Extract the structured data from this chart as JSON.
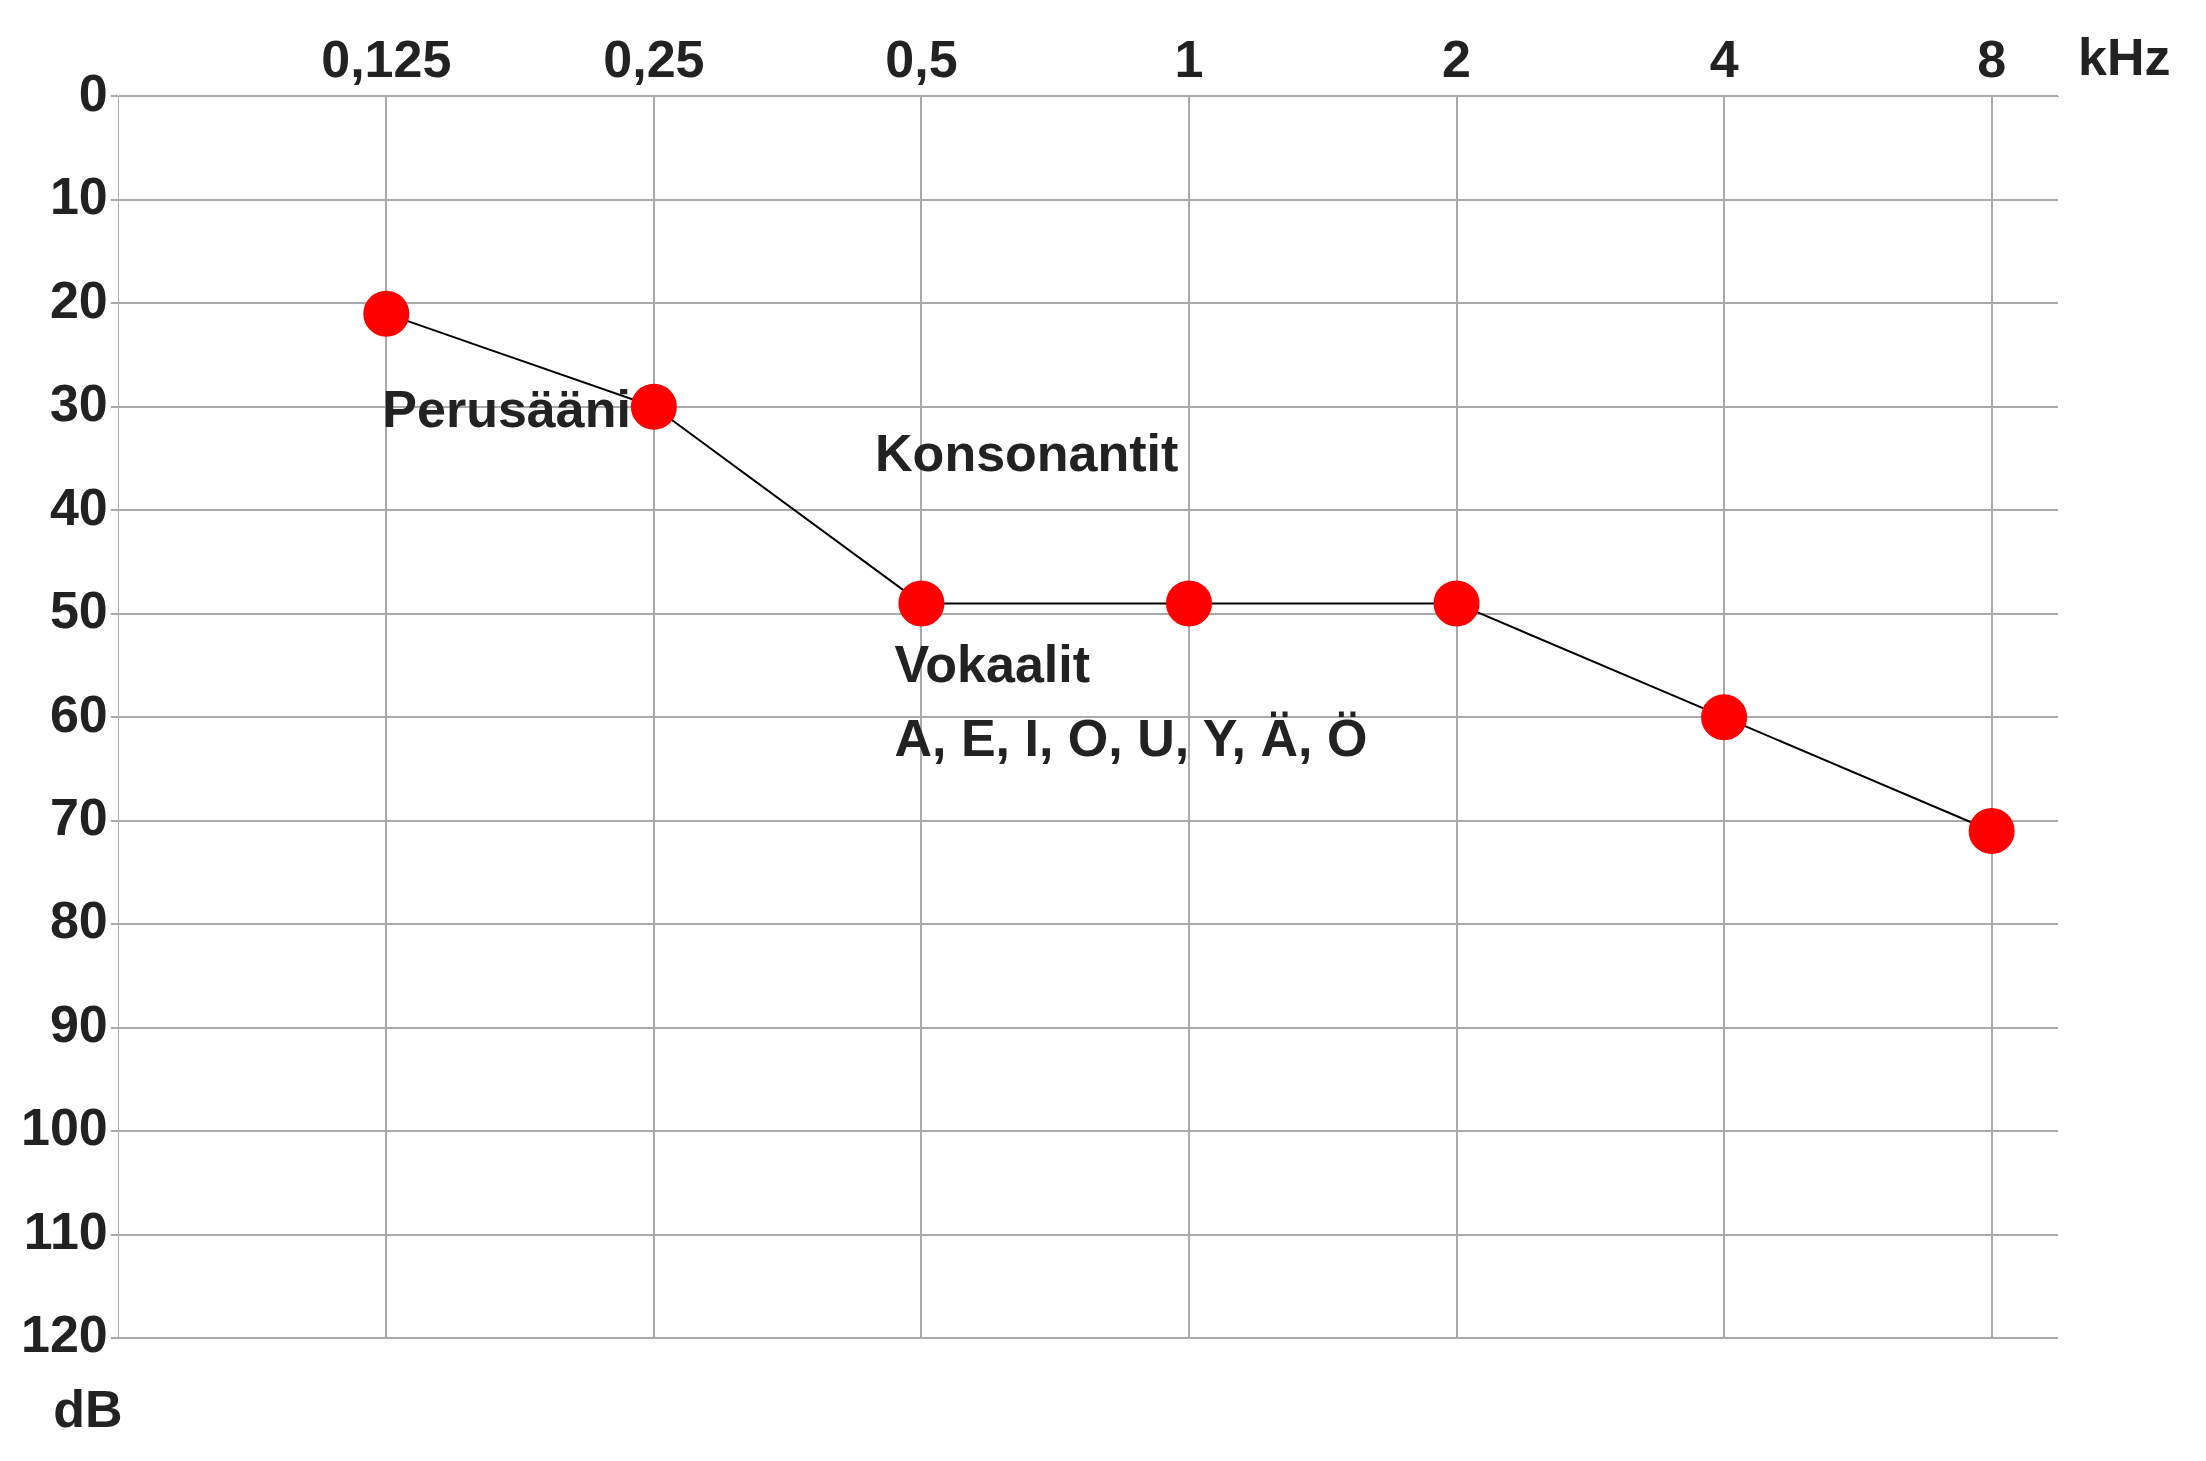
{
  "chart_data": {
    "type": "line",
    "xlabel": "kHz",
    "ylabel": "dB",
    "log": "x",
    "x": [
      0.125,
      0.25,
      0.5,
      1,
      2,
      4,
      8
    ],
    "series": [
      {
        "color": "#ff0000",
        "values": [
          21,
          30,
          49,
          49,
          49,
          60,
          71
        ]
      }
    ],
    "xlim": [
      0.0625,
      9.5
    ],
    "xticks": [
      {
        "value": 0.125,
        "label": "0,125"
      },
      {
        "value": 0.25,
        "label": "0,25"
      },
      {
        "value": 0.5,
        "label": "0,5"
      },
      1,
      2,
      4,
      8
    ],
    "ylim": [
      120,
      0
    ],
    "yticks": [
      0,
      10,
      20,
      30,
      40,
      50,
      60,
      70,
      80,
      90,
      100,
      110,
      120
    ],
    "grid": true,
    "legend": false,
    "marker": "circle",
    "line_style": "solid",
    "annotations": [
      "Perusääni",
      "Konsonantit",
      "Vokaalit",
      "A, E, I, O, U, Y, Ä, Ö"
    ]
  }
}
